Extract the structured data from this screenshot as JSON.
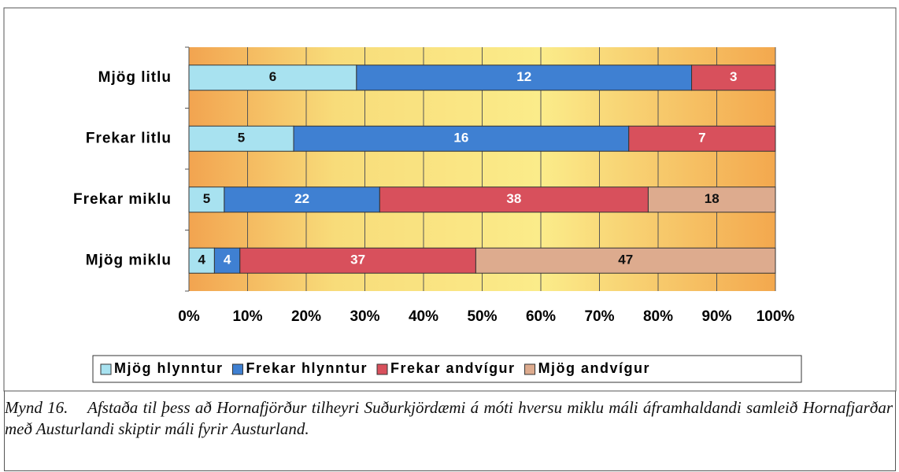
{
  "chart_data": {
    "type": "bar100h",
    "categories": [
      "Mjög litlu",
      "Frekar litlu",
      "Frekar miklu",
      "Mjög miklu"
    ],
    "series": [
      {
        "name": "Mjög hlynntur",
        "color": "#a8e2f0",
        "values": [
          6,
          5,
          5,
          4
        ]
      },
      {
        "name": "Frekar hlynntur",
        "color": "#3f80d2",
        "values": [
          12,
          16,
          22,
          4
        ]
      },
      {
        "name": "Frekar andvígur",
        "color": "#d8505c",
        "values": [
          3,
          7,
          38,
          37
        ]
      },
      {
        "name": "Mjög andvígur",
        "color": "#ddab8e",
        "values": [
          null,
          null,
          18,
          47
        ]
      }
    ],
    "xlim": [
      0,
      100
    ],
    "xticks": [
      {
        "value": 0,
        "label": "0%"
      },
      {
        "value": 10,
        "label": "10%"
      },
      {
        "value": 20,
        "label": "20%"
      },
      {
        "value": 30,
        "label": "30%"
      },
      {
        "value": 40,
        "label": "40%"
      },
      {
        "value": 50,
        "label": "50%"
      },
      {
        "value": 60,
        "label": "60%"
      },
      {
        "value": 70,
        "label": "70%"
      },
      {
        "value": 80,
        "label": "80%"
      },
      {
        "value": 90,
        "label": "90%"
      },
      {
        "value": 100,
        "label": "100%"
      }
    ],
    "grid": true,
    "legend": "bottom",
    "caption": {
      "label": "Mynd 16.",
      "text": "Afstaða til þess að Hornafjörður tilheyri Suðurkjördæmi á móti hversu miklu máli áframhaldandi samleið Hornafjarðar með Austurlandi skiptir máli fyrir Austurland."
    }
  }
}
